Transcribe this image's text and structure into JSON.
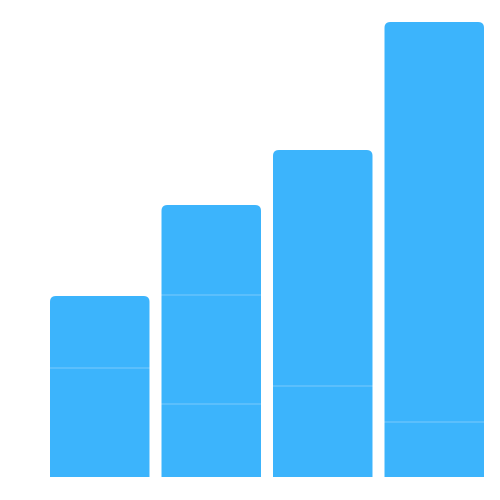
{
  "chart_data": {
    "type": "stacked-bar",
    "categories": [
      null,
      null,
      null,
      null
    ],
    "series": [
      {
        "color": "#3cb4fc",
        "values": [
          109,
          73,
          91,
          55
        ]
      },
      {
        "color": "#3cb4fc",
        "values": [
          72,
          109,
          236,
          400
        ]
      },
      {
        "color": "#3cb4fc",
        "values": [
          null,
          90,
          null,
          null
        ]
      }
    ],
    "ylim": [
      0,
      455
    ],
    "grid": false
  }
}
